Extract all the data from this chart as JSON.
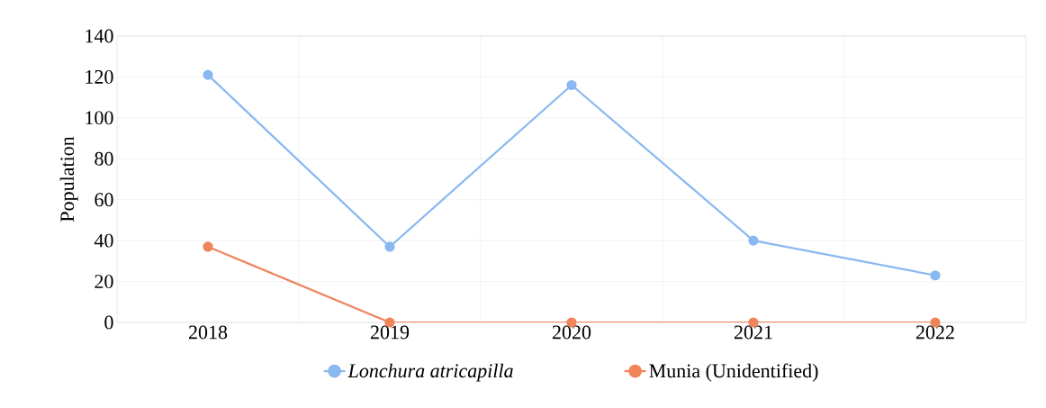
{
  "chart_data": {
    "type": "line",
    "ylabel": "Population",
    "categories": [
      "2018",
      "2019",
      "2020",
      "2021",
      "2022"
    ],
    "series": [
      {
        "name": "*Lonchura atricapilla*",
        "color": "#8ab8f0",
        "values": [
          121,
          37,
          116,
          40,
          23
        ]
      },
      {
        "name": "Munia (Unidentified)",
        "color": "#f0845a",
        "values": [
          37,
          0,
          0,
          0,
          0
        ]
      }
    ],
    "ylim": [
      0,
      140
    ],
    "yticks": [
      0,
      20,
      40,
      60,
      80,
      100,
      120,
      140
    ],
    "grid": true,
    "legend": "bottom",
    "marker": "circle",
    "line_style": "solid"
  }
}
